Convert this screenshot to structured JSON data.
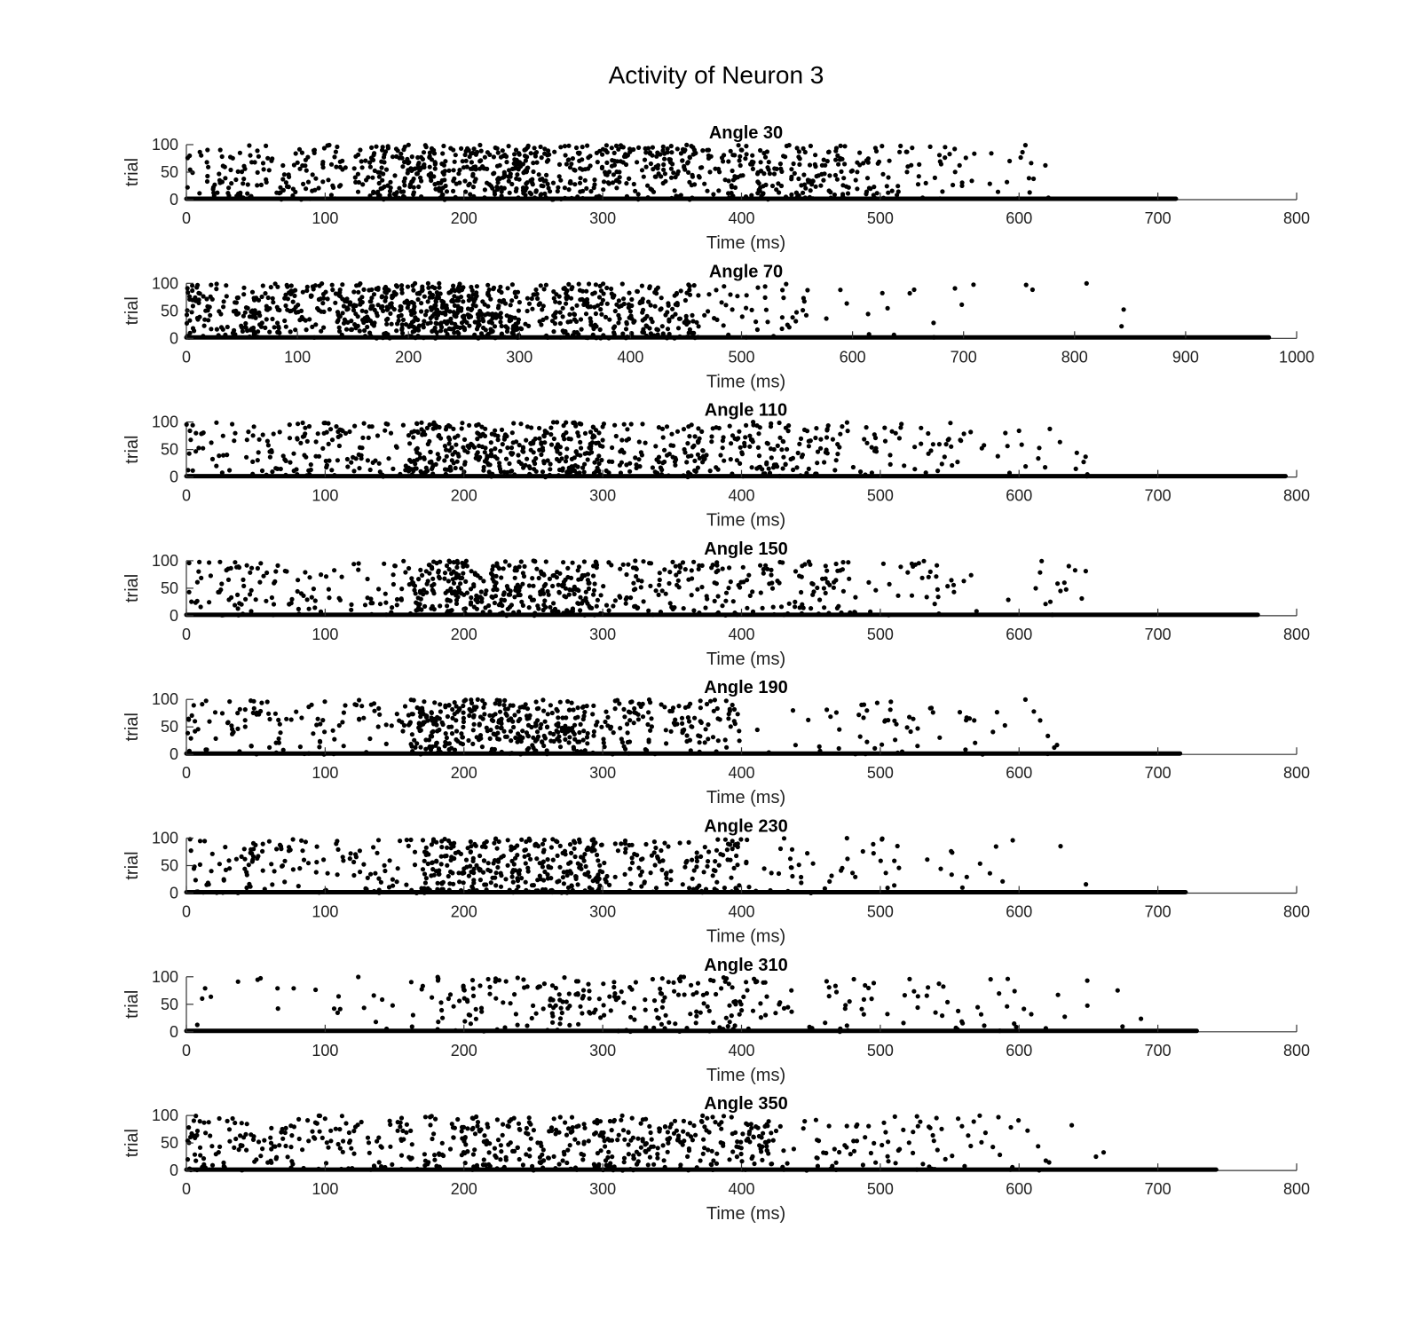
{
  "figure": {
    "title": "Activity of Neuron 3"
  },
  "chart_data": [
    {
      "type": "scatter",
      "title": "Angle 30",
      "xlabel": "Time (ms)",
      "ylabel": "trial",
      "xlim": [
        0,
        800
      ],
      "ylim": [
        0,
        100
      ],
      "xticks": [
        "0",
        "100",
        "200",
        "300",
        "400",
        "500",
        "600",
        "700",
        "800"
      ],
      "yticks": [
        "0",
        "50",
        "100"
      ],
      "baseline_end_ms": 713,
      "spike_density": [
        {
          "from": 0,
          "to": 130,
          "count": 150
        },
        {
          "from": 130,
          "to": 260,
          "count": 340
        },
        {
          "from": 260,
          "to": 420,
          "count": 300
        },
        {
          "from": 420,
          "to": 500,
          "count": 120
        },
        {
          "from": 500,
          "to": 560,
          "count": 40
        },
        {
          "from": 560,
          "to": 630,
          "count": 18
        }
      ]
    },
    {
      "type": "scatter",
      "title": "Angle 70",
      "xlabel": "Time (ms)",
      "ylabel": "trial",
      "xlim": [
        0,
        1000
      ],
      "ylim": [
        0,
        100
      ],
      "xticks": [
        "0",
        "100",
        "200",
        "300",
        "400",
        "500",
        "600",
        "700",
        "800",
        "900",
        "1000"
      ],
      "yticks": [
        "0",
        "50",
        "100"
      ],
      "baseline_end_ms": 975,
      "spike_density": [
        {
          "from": 0,
          "to": 150,
          "count": 240
        },
        {
          "from": 150,
          "to": 300,
          "count": 420
        },
        {
          "from": 300,
          "to": 460,
          "count": 260
        },
        {
          "from": 460,
          "to": 560,
          "count": 45
        },
        {
          "from": 560,
          "to": 700,
          "count": 14
        },
        {
          "from": 700,
          "to": 850,
          "count": 6
        }
      ]
    },
    {
      "type": "scatter",
      "title": "Angle 110",
      "xlabel": "Time (ms)",
      "ylabel": "trial",
      "xlim": [
        0,
        800
      ],
      "ylim": [
        0,
        100
      ],
      "xticks": [
        "0",
        "100",
        "200",
        "300",
        "400",
        "500",
        "600",
        "700",
        "800"
      ],
      "yticks": [
        "0",
        "50",
        "100"
      ],
      "baseline_end_ms": 792,
      "spike_density": [
        {
          "from": 0,
          "to": 160,
          "count": 150
        },
        {
          "from": 160,
          "to": 300,
          "count": 340
        },
        {
          "from": 300,
          "to": 470,
          "count": 220
        },
        {
          "from": 470,
          "to": 560,
          "count": 50
        },
        {
          "from": 560,
          "to": 650,
          "count": 22
        }
      ]
    },
    {
      "type": "scatter",
      "title": "Angle 150",
      "xlabel": "Time (ms)",
      "ylabel": "trial",
      "xlim": [
        0,
        800
      ],
      "ylim": [
        0,
        100
      ],
      "xticks": [
        "0",
        "100",
        "200",
        "300",
        "400",
        "500",
        "600",
        "700",
        "800"
      ],
      "yticks": [
        "0",
        "50",
        "100"
      ],
      "baseline_end_ms": 772,
      "spike_density": [
        {
          "from": 0,
          "to": 160,
          "count": 120
        },
        {
          "from": 160,
          "to": 300,
          "count": 330
        },
        {
          "from": 300,
          "to": 470,
          "count": 180
        },
        {
          "from": 470,
          "to": 560,
          "count": 40
        },
        {
          "from": 560,
          "to": 650,
          "count": 18
        }
      ]
    },
    {
      "type": "scatter",
      "title": "Angle 190",
      "xlabel": "Time (ms)",
      "ylabel": "trial",
      "xlim": [
        0,
        800
      ],
      "ylim": [
        0,
        100
      ],
      "xticks": [
        "0",
        "100",
        "200",
        "300",
        "400",
        "500",
        "600",
        "700",
        "800"
      ],
      "yticks": [
        "0",
        "50",
        "100"
      ],
      "baseline_end_ms": 716,
      "spike_density": [
        {
          "from": 0,
          "to": 160,
          "count": 110
        },
        {
          "from": 160,
          "to": 290,
          "count": 330
        },
        {
          "from": 290,
          "to": 400,
          "count": 130
        },
        {
          "from": 400,
          "to": 530,
          "count": 40
        },
        {
          "from": 530,
          "to": 630,
          "count": 22
        }
      ]
    },
    {
      "type": "scatter",
      "title": "Angle 230",
      "xlabel": "Time (ms)",
      "ylabel": "trial",
      "xlim": [
        0,
        800
      ],
      "ylim": [
        0,
        100
      ],
      "xticks": [
        "0",
        "100",
        "200",
        "300",
        "400",
        "500",
        "600",
        "700",
        "800"
      ],
      "yticks": [
        "0",
        "50",
        "100"
      ],
      "baseline_end_ms": 720,
      "spike_density": [
        {
          "from": 0,
          "to": 170,
          "count": 130
        },
        {
          "from": 170,
          "to": 300,
          "count": 300
        },
        {
          "from": 300,
          "to": 400,
          "count": 120
        },
        {
          "from": 400,
          "to": 520,
          "count": 45
        },
        {
          "from": 520,
          "to": 650,
          "count": 14
        }
      ]
    },
    {
      "type": "scatter",
      "title": "Angle 310",
      "xlabel": "Time (ms)",
      "ylabel": "trial",
      "xlim": [
        0,
        800
      ],
      "ylim": [
        0,
        100
      ],
      "xticks": [
        "0",
        "100",
        "200",
        "300",
        "400",
        "500",
        "600",
        "700",
        "800"
      ],
      "yticks": [
        "0",
        "50",
        "100"
      ],
      "baseline_end_ms": 728,
      "spike_density": [
        {
          "from": 0,
          "to": 180,
          "count": 28
        },
        {
          "from": 180,
          "to": 420,
          "count": 220
        },
        {
          "from": 420,
          "to": 600,
          "count": 60
        },
        {
          "from": 600,
          "to": 690,
          "count": 10
        }
      ]
    },
    {
      "type": "scatter",
      "title": "Angle 350",
      "xlabel": "Time (ms)",
      "ylabel": "trial",
      "xlim": [
        0,
        800
      ],
      "ylim": [
        0,
        100
      ],
      "xticks": [
        "0",
        "100",
        "200",
        "300",
        "400",
        "500",
        "600",
        "700",
        "800"
      ],
      "yticks": [
        "0",
        "50",
        "100"
      ],
      "baseline_end_ms": 742,
      "spike_density": [
        {
          "from": 0,
          "to": 170,
          "count": 170
        },
        {
          "from": 170,
          "to": 420,
          "count": 380
        },
        {
          "from": 420,
          "to": 540,
          "count": 70
        },
        {
          "from": 540,
          "to": 620,
          "count": 25
        },
        {
          "from": 620,
          "to": 665,
          "count": 4
        }
      ]
    }
  ]
}
